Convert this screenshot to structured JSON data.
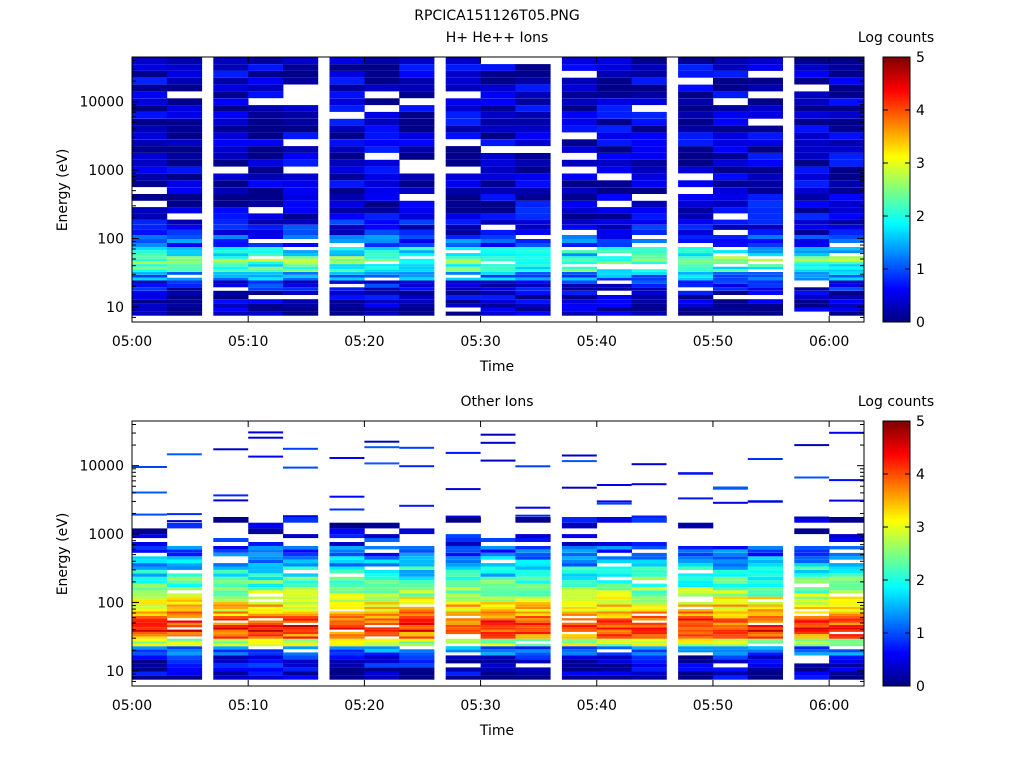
{
  "figure_title": "RPCICA151126T05.PNG",
  "chart_data": [
    {
      "type": "heatmap",
      "title": "H+ He++ Ions",
      "xlabel": "Time",
      "ylabel": "Energy (eV)",
      "x_ticks": [
        "05:00",
        "05:10",
        "05:20",
        "05:30",
        "05:40",
        "05:50",
        "06:00"
      ],
      "x_range": [
        "05:00",
        "06:03"
      ],
      "y_scale": "log",
      "y_ticks": [
        "10",
        "100",
        "1000",
        "10000"
      ],
      "y_range": [
        6,
        45000
      ],
      "colorbar": {
        "label": "Log counts",
        "ticks": [
          "0",
          "1",
          "2",
          "3",
          "4",
          "5"
        ],
        "range": [
          0,
          5
        ]
      },
      "time_columns": [
        "05:00",
        "05:03",
        "05:07",
        "05:10",
        "05:13",
        "05:17",
        "05:20",
        "05:23",
        "05:27",
        "05:30",
        "05:33",
        "05:37",
        "05:40",
        "05:43",
        "05:47",
        "05:50",
        "05:53",
        "05:57",
        "06:00"
      ],
      "energy_profile": {
        "bins_log10": [
          0.95,
          1.15,
          1.32,
          1.45,
          1.57,
          1.68,
          1.8,
          1.95,
          2.15,
          2.4,
          2.7,
          3.0,
          3.3,
          3.6,
          3.9,
          4.2,
          4.5
        ],
        "mean_log_counts": [
          0.2,
          0.3,
          0.6,
          1.3,
          2.1,
          2.4,
          1.8,
          1.0,
          0.6,
          0.4,
          0.3,
          0.3,
          0.3,
          0.3,
          0.3,
          0.3,
          0.3
        ]
      }
    },
    {
      "type": "heatmap",
      "title": "Other Ions",
      "xlabel": "Time",
      "ylabel": "Energy (eV)",
      "x_ticks": [
        "05:00",
        "05:10",
        "05:20",
        "05:30",
        "05:40",
        "05:50",
        "06:00"
      ],
      "x_range": [
        "05:00",
        "06:03"
      ],
      "y_scale": "log",
      "y_ticks": [
        "10",
        "100",
        "1000",
        "10000"
      ],
      "y_range": [
        6,
        45000
      ],
      "colorbar": {
        "label": "Log counts",
        "ticks": [
          "0",
          "1",
          "2",
          "3",
          "4",
          "5"
        ],
        "range": [
          0,
          5
        ]
      },
      "time_columns": [
        "05:00",
        "05:03",
        "05:07",
        "05:10",
        "05:13",
        "05:17",
        "05:20",
        "05:23",
        "05:27",
        "05:30",
        "05:33",
        "05:37",
        "05:40",
        "05:43",
        "05:47",
        "05:50",
        "05:53",
        "05:57",
        "06:00"
      ],
      "energy_profile": {
        "bins_log10": [
          0.95,
          1.15,
          1.3,
          1.42,
          1.52,
          1.62,
          1.72,
          1.82,
          1.92,
          2.02,
          2.15,
          2.3,
          2.45,
          2.6,
          2.75,
          2.9,
          3.1
        ],
        "mean_log_counts": [
          0.3,
          0.5,
          1.2,
          2.8,
          3.8,
          4.2,
          4.0,
          3.6,
          3.3,
          3.0,
          2.6,
          2.2,
          1.8,
          1.4,
          1.0,
          0.7,
          0.4
        ]
      }
    }
  ]
}
